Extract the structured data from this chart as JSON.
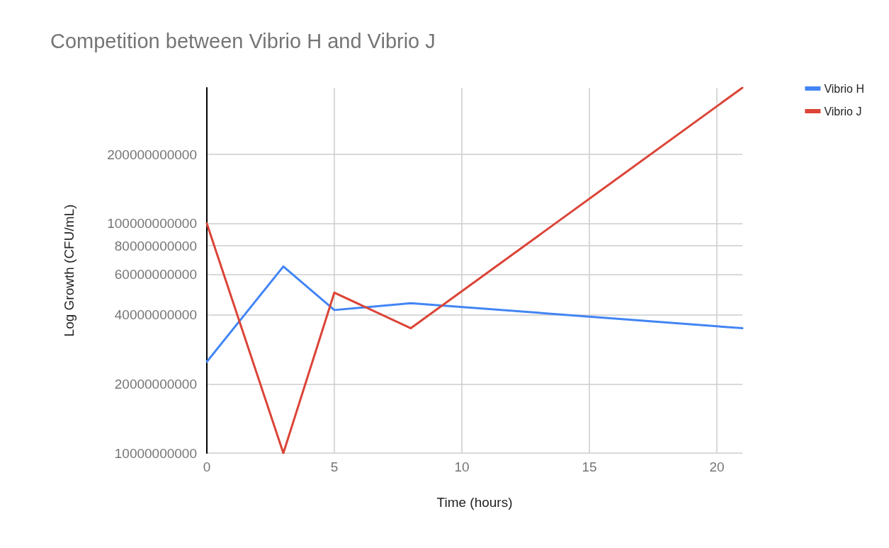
{
  "chart_data": {
    "type": "line",
    "title": "Competition between Vibrio H and Vibrio J",
    "xlabel": "Time (hours)",
    "ylabel": "Log Growth (CFU/mL)",
    "x": [
      0,
      3,
      5,
      8,
      21
    ],
    "series": [
      {
        "name": "Vibrio H",
        "color": "#4285f4",
        "values": [
          25000000000,
          65000000000,
          42000000000,
          45000000000,
          35000000000
        ]
      },
      {
        "name": "Vibrio J",
        "color": "#db4437",
        "values": [
          100000000000,
          10000000000,
          50000000000,
          35000000000,
          390000000000
        ]
      }
    ],
    "xlim": [
      0,
      21
    ],
    "xticks": [
      0,
      5,
      10,
      15,
      20
    ],
    "ylim": [
      10000000000,
      390000000000
    ],
    "yticks": [
      10000000000,
      20000000000,
      40000000000,
      60000000000,
      80000000000,
      100000000000,
      200000000000
    ],
    "log": "y",
    "grid": true,
    "legend": "top right",
    "marker": "none",
    "line_style": "solid"
  }
}
